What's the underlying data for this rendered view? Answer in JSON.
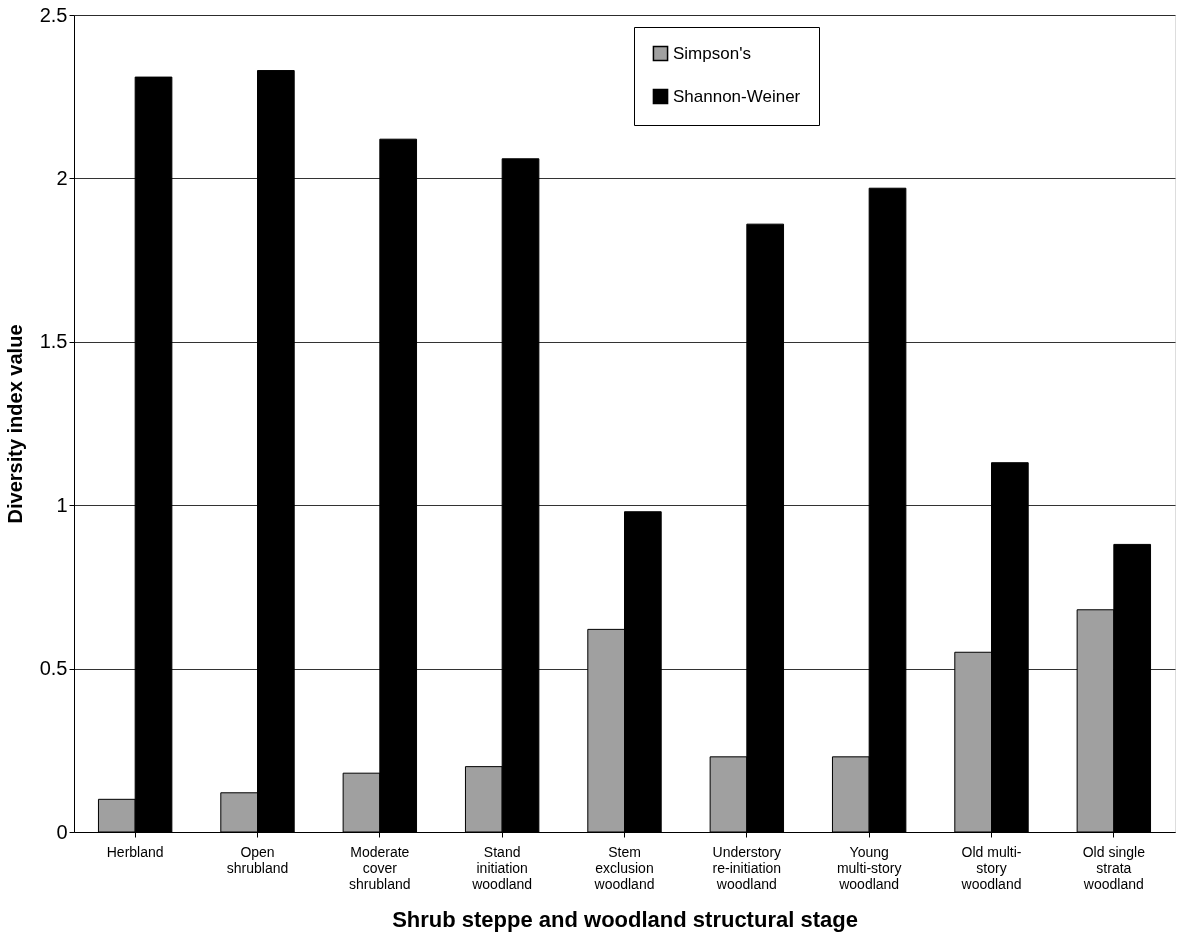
{
  "chart_data": {
    "type": "bar",
    "categories": [
      "Herbland",
      "Open\nshrubland",
      "Moderate\ncover\nshrubland",
      "Stand\ninitiation\nwoodland",
      "Stem\nexclusion\nwoodland",
      "Understory\nre-initiation\nwoodland",
      "Young\nmulti-story\nwoodland",
      "Old multi-\nstory\nwoodland",
      "Old single\nstrata\nwoodland"
    ],
    "series": [
      {
        "name": "Simpson's",
        "color": "#a0a0a0",
        "values": [
          0.1,
          0.12,
          0.18,
          0.2,
          0.62,
          0.23,
          0.23,
          0.55,
          0.68
        ]
      },
      {
        "name": "Shannon-Weiner",
        "color": "#000000",
        "values": [
          2.31,
          2.33,
          2.12,
          2.06,
          0.98,
          1.86,
          1.97,
          1.13,
          0.88
        ]
      }
    ],
    "xlabel": "Shrub steppe and woodland structural stage",
    "ylabel": "Diversity index value",
    "ylim": [
      0,
      2.5
    ],
    "yticks": [
      0,
      0.5,
      1,
      1.5,
      2,
      2.5
    ],
    "grid": "y",
    "legend": "top"
  }
}
